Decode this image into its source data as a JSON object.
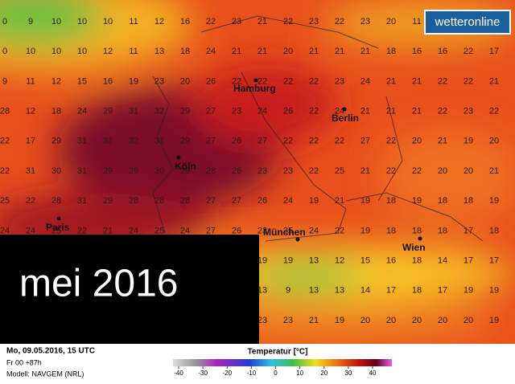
{
  "logo": "wetteronline",
  "overlay": "mei 2016",
  "grid": [
    [
      0,
      9,
      10,
      10,
      10,
      11,
      12,
      16,
      22,
      23,
      21,
      22,
      23,
      22,
      23,
      20,
      11,
      null,
      null,
      null
    ],
    [
      0,
      10,
      10,
      10,
      12,
      11,
      13,
      18,
      24,
      21,
      21,
      20,
      21,
      21,
      21,
      18,
      16,
      16,
      22,
      17
    ],
    [
      9,
      11,
      12,
      15,
      16,
      19,
      23,
      20,
      26,
      22,
      22,
      22,
      22,
      23,
      24,
      21,
      21,
      22,
      22,
      21
    ],
    [
      28,
      12,
      18,
      24,
      29,
      31,
      32,
      29,
      27,
      23,
      24,
      26,
      22,
      24,
      21,
      21,
      21,
      22,
      23,
      22
    ],
    [
      22,
      17,
      29,
      31,
      31,
      32,
      31,
      29,
      27,
      26,
      27,
      22,
      22,
      22,
      27,
      22,
      20,
      21,
      19,
      20
    ],
    [
      22,
      31,
      30,
      31,
      29,
      29,
      30,
      29,
      28,
      26,
      23,
      23,
      22,
      25,
      21,
      22,
      22,
      20,
      20,
      21
    ],
    [
      25,
      22,
      28,
      31,
      29,
      28,
      28,
      28,
      27,
      27,
      26,
      24,
      19,
      21,
      19,
      18,
      19,
      18,
      18,
      19
    ],
    [
      24,
      24,
      25,
      22,
      21,
      24,
      25,
      24,
      27,
      26,
      23,
      25,
      24,
      22,
      19,
      18,
      18,
      18,
      17,
      18
    ],
    [
      null,
      null,
      null,
      null,
      null,
      null,
      null,
      null,
      null,
      null,
      19,
      19,
      13,
      12,
      15,
      16,
      18,
      14,
      17,
      17
    ],
    [
      null,
      null,
      null,
      null,
      null,
      null,
      null,
      null,
      null,
      null,
      13,
      9,
      13,
      13,
      14,
      17,
      18,
      17,
      19,
      19
    ],
    [
      null,
      null,
      null,
      null,
      null,
      null,
      null,
      null,
      null,
      null,
      23,
      23,
      21,
      19,
      20,
      20,
      20,
      20,
      20,
      19
    ]
  ],
  "cities": [
    "Hamburg",
    "Berlin",
    "Köln",
    "Paris",
    "München",
    "Wien"
  ],
  "footer": {
    "date": "Mo, 09.05.2016, 15 UTC",
    "run": "Fr 00 +87h",
    "model": "Modell: NAVGEM (NRL)"
  },
  "legend": {
    "title": "Temperatur [°C]",
    "ticks": [
      -40,
      -30,
      -20,
      -10,
      0,
      10,
      20,
      30,
      40
    ]
  }
}
